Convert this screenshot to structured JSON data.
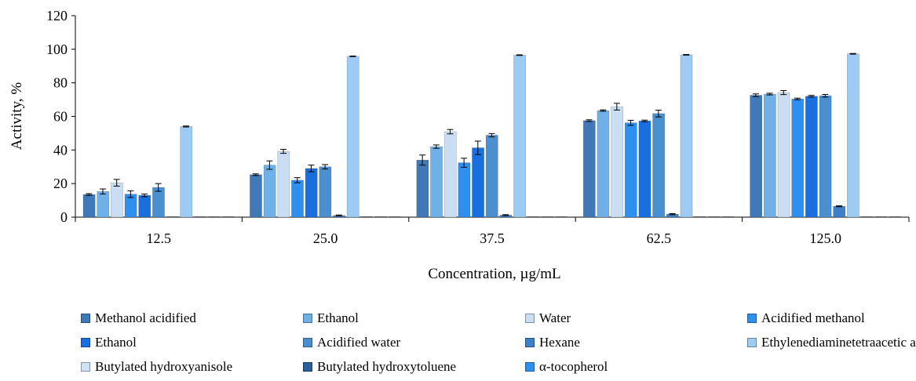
{
  "chart_data": {
    "type": "bar",
    "categories": [
      "12.5",
      "25.0",
      "37.5",
      "62.5",
      "125.0"
    ],
    "xlabel": "Concentration, µg/mL",
    "ylabel": "Activity, %",
    "ylim": [
      0,
      120
    ],
    "yticks": [
      "0",
      "20",
      "40",
      "60",
      "80",
      "100",
      "120"
    ],
    "grid": false,
    "legend_position": "bottom",
    "error_bars": true,
    "series": [
      {
        "name": "Methanol acidified",
        "color": "#3f79b8",
        "values": [
          13.5,
          25.3,
          34.0,
          57.5,
          72.6
        ],
        "errors": [
          0.5,
          0.5,
          3.0,
          0.5,
          0.8
        ]
      },
      {
        "name": "Ethanol",
        "color": "#6fb0e8",
        "values": [
          15.3,
          31.0,
          42.0,
          63.5,
          73.3
        ],
        "errors": [
          1.5,
          2.5,
          1.0,
          0.4,
          0.5
        ]
      },
      {
        "name": "Water",
        "color": "#c9def2",
        "values": [
          20.5,
          39.2,
          50.9,
          65.8,
          74.2
        ],
        "errors": [
          2.0,
          1.2,
          1.3,
          2.0,
          1.2
        ]
      },
      {
        "name": "Acidified methanol",
        "color": "#2f8fef",
        "values": [
          13.7,
          22.0,
          32.4,
          56.2,
          70.4
        ],
        "errors": [
          2.0,
          1.5,
          2.7,
          1.5,
          0.5
        ]
      },
      {
        "name": "Ethanol",
        "color": "#1a6fe0",
        "values": [
          13.0,
          29.0,
          41.3,
          57.3,
          72.0
        ],
        "errors": [
          0.8,
          2.0,
          4.0,
          0.5,
          0.5
        ]
      },
      {
        "name": "Acidified water",
        "color": "#4a8fd0",
        "values": [
          17.7,
          30.0,
          48.8,
          61.7,
          72.3
        ],
        "errors": [
          2.3,
          1.3,
          1.0,
          2.0,
          0.8
        ]
      },
      {
        "name": "Hexane",
        "color": "#3d80c8",
        "values": [
          0.0,
          1.0,
          1.2,
          1.8,
          6.5
        ],
        "errors": [
          0,
          0.3,
          0.3,
          0.3,
          0.3
        ]
      },
      {
        "name": "Ethylenediaminetetraacetic acid",
        "color": "#9ccbf3",
        "values": [
          54.0,
          95.8,
          96.5,
          96.7,
          97.3
        ],
        "errors": [
          0.3,
          0.2,
          0.2,
          0.2,
          0.2
        ]
      },
      {
        "name": "Butylated hydroxyanisole",
        "color": "#cfe3f5",
        "values": [
          0,
          0,
          0,
          0,
          0
        ],
        "errors": [
          0,
          0,
          0,
          0,
          0
        ]
      },
      {
        "name": "Butylated hydroxytoluene",
        "color": "#2a5f99",
        "values": [
          0,
          0,
          0,
          0,
          0
        ],
        "errors": [
          0,
          0,
          0,
          0,
          0
        ]
      },
      {
        "name": "α-tocopherol",
        "color": "#2f8fef",
        "values": [
          0,
          0,
          0,
          0,
          0
        ],
        "errors": [
          0,
          0,
          0,
          0,
          0
        ]
      }
    ]
  }
}
